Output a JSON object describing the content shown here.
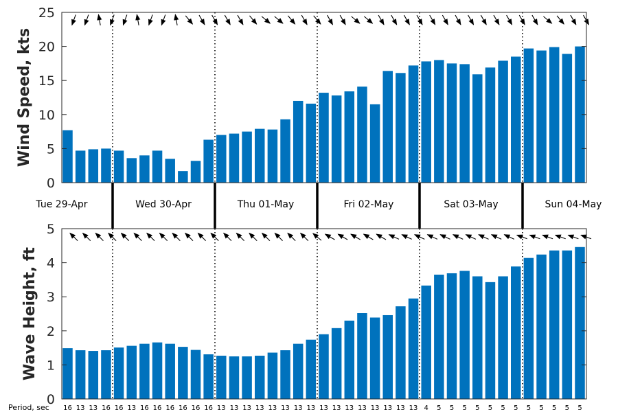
{
  "chart_data": [
    {
      "type": "bar",
      "ylabel": "Wind Speed, kts",
      "ylim": [
        0,
        25
      ],
      "yticks": [
        0,
        5,
        10,
        15,
        20,
        25
      ],
      "color": "#0072BD",
      "values": [
        7.7,
        4.7,
        4.9,
        5.0,
        4.7,
        3.6,
        4.0,
        4.7,
        3.5,
        1.7,
        3.2,
        6.3,
        7.0,
        7.2,
        7.5,
        7.9,
        7.8,
        9.3,
        12.0,
        11.6,
        13.2,
        12.8,
        13.4,
        14.1,
        11.5,
        16.4,
        16.1,
        17.2,
        17.8,
        18.0,
        17.5,
        17.4,
        15.9,
        16.9,
        17.9,
        18.5,
        19.7,
        19.4,
        19.9,
        18.9,
        20.0
      ],
      "direction_arrows": [
        250,
        250,
        100,
        250,
        250,
        100,
        250,
        250,
        100,
        310,
        300,
        300,
        300,
        300,
        310,
        320,
        320,
        310,
        300,
        310,
        300,
        300,
        320,
        320,
        300,
        300,
        300,
        300,
        300,
        300,
        300,
        300,
        300,
        300,
        300,
        300,
        300,
        320,
        310,
        300,
        300
      ]
    },
    {
      "type": "bar",
      "ylabel": "Wave Height, ft",
      "ylim": [
        0,
        5
      ],
      "yticks": [
        0,
        1,
        2,
        3,
        4,
        5
      ],
      "color": "#0072BD",
      "values": [
        1.49,
        1.43,
        1.41,
        1.43,
        1.51,
        1.56,
        1.62,
        1.66,
        1.62,
        1.53,
        1.44,
        1.31,
        1.27,
        1.25,
        1.25,
        1.27,
        1.36,
        1.43,
        1.62,
        1.74,
        1.9,
        2.08,
        2.3,
        2.52,
        2.39,
        2.46,
        2.72,
        2.95,
        3.33,
        3.65,
        3.69,
        3.76,
        3.6,
        3.43,
        3.6,
        3.89,
        4.14,
        4.24,
        4.36,
        4.36,
        4.46
      ],
      "direction_arrows": [
        135,
        135,
        135,
        135,
        135,
        135,
        135,
        135,
        135,
        135,
        135,
        135,
        135,
        135,
        135,
        135,
        135,
        135,
        135,
        140,
        150,
        150,
        150,
        150,
        150,
        155,
        155,
        155,
        155,
        155,
        155,
        155,
        155,
        155,
        155,
        160,
        160,
        160,
        160,
        160,
        160
      ]
    }
  ],
  "days": [
    "Tue 29-Apr",
    "Wed 30-Apr",
    "Thu 01-May",
    "Fri 02-May",
    "Sat 03-May",
    "Sun 04-May"
  ],
  "period_label": "Period, sec",
  "periods": [
    "16",
    "13",
    "13",
    "16",
    "16",
    "13",
    "16",
    "16",
    "16",
    "16",
    "16",
    "16",
    "13",
    "13",
    "13",
    "13",
    "13",
    "13",
    "13",
    "13",
    "13",
    "13",
    "13",
    "13",
    "13",
    "13",
    "13",
    "13",
    "4",
    "5",
    "5",
    "5",
    "5",
    "5",
    "5",
    "5",
    "5",
    "5",
    "5",
    "5",
    "5"
  ]
}
